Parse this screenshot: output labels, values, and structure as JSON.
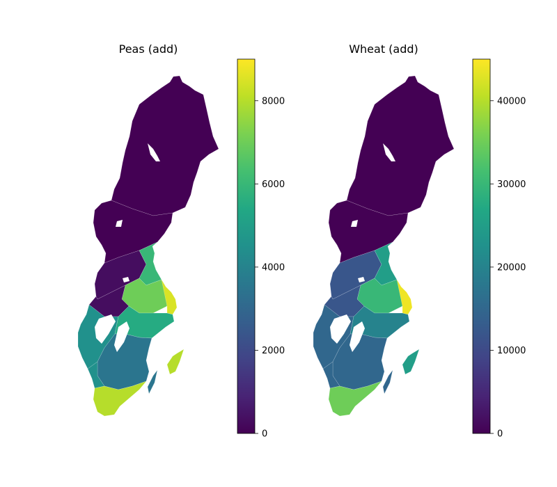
{
  "chart_data": [
    {
      "type": "choropleth",
      "title": "Peas (add)",
      "colormap": "viridis",
      "colorbar": {
        "range": [
          0,
          9000
        ],
        "ticks": [
          0,
          2000,
          4000,
          6000,
          8000
        ],
        "tick_labels": [
          "0",
          "2000",
          "4000",
          "6000",
          "8000"
        ]
      },
      "regions_value_sample": {
        "north": 0,
        "central_west": 300,
        "central_east": 6000,
        "stockholm_uppsala": 8500,
        "malardalen": 7000,
        "vastra_gotaland": 4500,
        "east_gotaland": 5500,
        "smaland": 3500,
        "gotland": 8000,
        "skane": 8000
      }
    },
    {
      "type": "choropleth",
      "title": "Wheat (add)",
      "colormap": "viridis",
      "colorbar": {
        "range": [
          0,
          45000
        ],
        "ticks": [
          0,
          10000,
          20000,
          30000,
          40000
        ],
        "tick_labels": [
          "0",
          "10000",
          "20000",
          "30000",
          "40000"
        ]
      },
      "regions_value_sample": {
        "north": 0,
        "central_west": 12000,
        "central_east": 25000,
        "stockholm_uppsala": 44000,
        "malardalen": 30000,
        "vastra_gotaland": 15000,
        "east_gotaland": 20000,
        "smaland": 15000,
        "gotland": 25000,
        "skane": 35000
      }
    }
  ]
}
